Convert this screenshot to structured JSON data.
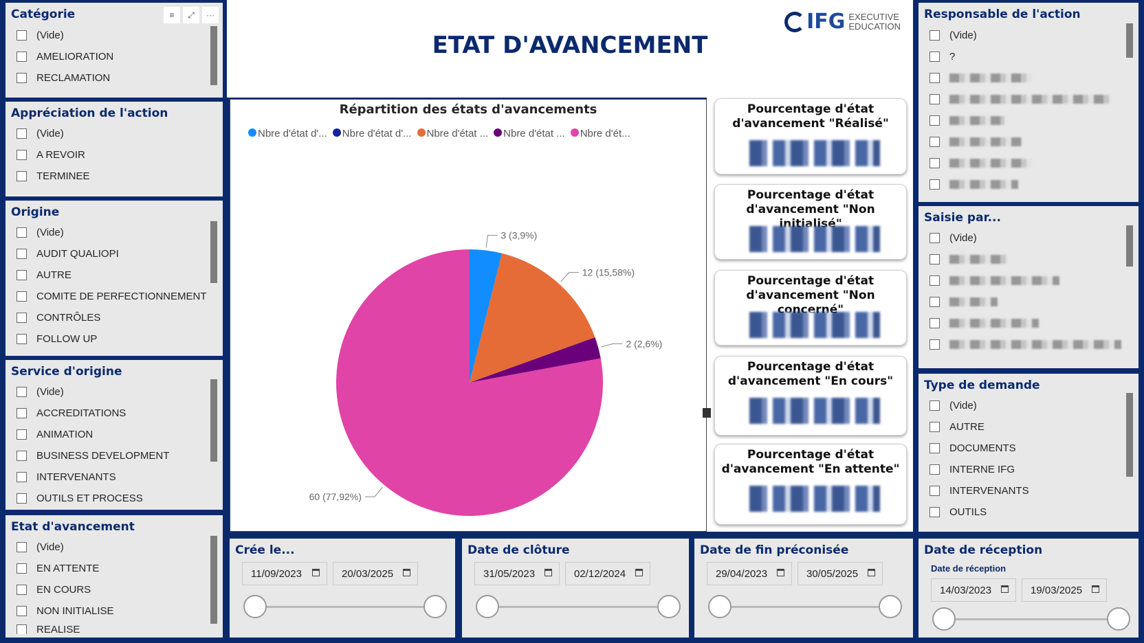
{
  "report_title": "ETAT D'AVANCEMENT",
  "logo": {
    "brand": "IFG",
    "line1": "EXECUTIVE",
    "line2": "EDUCATION"
  },
  "slicers": {
    "categorie": {
      "title": "Catégorie",
      "items": [
        "(Vide)",
        "AMELIORATION",
        "RECLAMATION"
      ],
      "icons": [
        "filter-icon",
        "focus-mode-icon",
        "more-options-icon"
      ]
    },
    "appreciation": {
      "title": "Appréciation de l'action",
      "items": [
        "(Vide)",
        "A REVOIR",
        "TERMINEE"
      ]
    },
    "origine": {
      "title": "Origine",
      "items": [
        "(Vide)",
        "AUDIT QUALIOPI",
        "AUTRE",
        "COMITE DE PERFECTIONNEMENT",
        "CONTRÔLES",
        "FOLLOW UP"
      ]
    },
    "service": {
      "title": "Service d'origine",
      "items": [
        "(Vide)",
        "ACCREDITATIONS",
        "ANIMATION",
        "BUSINESS DEVELOPMENT",
        "INTERVENANTS",
        "OUTILS ET PROCESS"
      ]
    },
    "etat": {
      "title": "Etat d'avancement",
      "items": [
        "(Vide)",
        "EN ATTENTE",
        "EN COURS",
        "NON INITIALISE",
        "REALISE"
      ]
    },
    "responsable": {
      "title": "Responsable de l'action",
      "items": [
        "(Vide)",
        "?"
      ]
    },
    "saisie": {
      "title": "Saisie par...",
      "items": [
        "(Vide)"
      ]
    },
    "type": {
      "title": "Type de demande",
      "items": [
        "(Vide)",
        "AUTRE",
        "DOCUMENTS",
        "INTERNE IFG",
        "INTERVENANTS",
        "OUTILS"
      ]
    }
  },
  "pie_chart": {
    "title": "Répartition des états d'avancements",
    "legend": [
      "Nbre d'état d'...",
      "Nbre d'état d'...",
      "Nbre d'état ...",
      "Nbre d'état ...",
      "Nbre d'ét..."
    ],
    "labels": [
      "3 (3,9%)",
      "12 (15,58%)",
      "2 (2,6%)",
      "60 (77,92%)"
    ]
  },
  "chart_data": {
    "type": "pie",
    "title": "Répartition des états d'avancements",
    "series": [
      {
        "name": "Nbre d'état d'...",
        "value": 3,
        "color": "#118dff"
      },
      {
        "name": "Nbre d'état ...",
        "value": 12,
        "color": "#e66c37"
      },
      {
        "name": "Nbre d'état ...",
        "value": 2,
        "color": "#6b007b"
      },
      {
        "name": "Nbre d'ét...",
        "value": 60,
        "color": "#e044a7"
      }
    ],
    "legend_colors": [
      "#118dff",
      "#12239e",
      "#e66c37",
      "#6b007b",
      "#e044a7"
    ],
    "legend_position": "top"
  },
  "kpi_cards": [
    {
      "line1": "Pourcentage d'état",
      "line2": "d'avancement \"Réalisé\""
    },
    {
      "line1": "Pourcentage d'état",
      "line2": "d'avancement \"Non initialisé\""
    },
    {
      "line1": "Pourcentage d'état",
      "line2": "d'avancement \"Non concerné\""
    },
    {
      "line1": "Pourcentage d'état",
      "line2": "d'avancement \"En cours\""
    },
    {
      "line1": "Pourcentage d'état",
      "line2": "d'avancement \"En attente\""
    }
  ],
  "date_slicers": [
    {
      "title": "Crée le...",
      "from": "11/09/2023",
      "to": "20/03/2025"
    },
    {
      "title": "Date de clôture",
      "from": "31/05/2023",
      "to": "02/12/2024"
    },
    {
      "title": "Date de fin préconisée",
      "from": "29/04/2023",
      "to": "30/05/2025"
    },
    {
      "title": "Date de réception",
      "subtitle": "Date de réception",
      "from": "14/03/2023",
      "to": "19/03/2025"
    }
  ],
  "colors": {
    "navy": "#0b2a6e",
    "panel": "#e8e8e8"
  }
}
